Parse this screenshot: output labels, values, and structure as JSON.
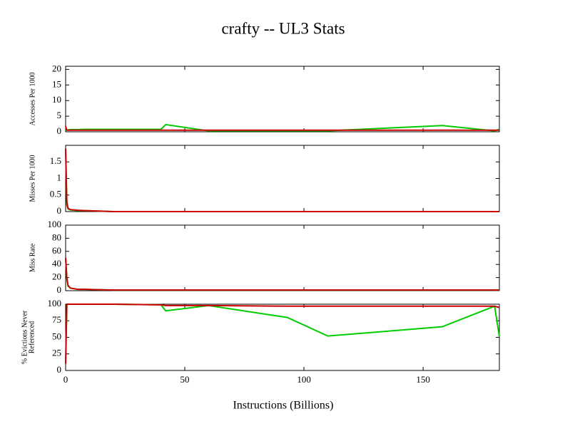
{
  "chart_data": [
    {
      "type": "line",
      "title": "crafty -- UL3  Stats",
      "ylabel": "Accesses Per 1000",
      "x": [
        0,
        0.5,
        1,
        2,
        5,
        8,
        20,
        40,
        42,
        60,
        93,
        110,
        158,
        180,
        182
      ],
      "xlim": [
        0,
        182
      ],
      "ylim": [
        0,
        21
      ],
      "yticks": [
        0,
        5,
        10,
        15,
        20
      ],
      "series": [
        {
          "color": "#00cc00",
          "values": [
            0.5,
            0.6,
            0.6,
            0.7,
            0.7,
            0.8,
            0.8,
            0.8,
            2.3,
            0.3,
            0.3,
            0.3,
            2.0,
            0.3,
            0.8
          ]
        },
        {
          "color": "#cc0000",
          "values": [
            1.8,
            0.5,
            0.5,
            0.5,
            0.5,
            0.5,
            0.5,
            0.5,
            0.5,
            0.5,
            0.5,
            0.5,
            0.5,
            0.5,
            0.5
          ]
        }
      ]
    },
    {
      "type": "line",
      "ylabel": "Misses Per 1000",
      "x": [
        0,
        0.5,
        1,
        2,
        5,
        8,
        20,
        40,
        42,
        60,
        93,
        110,
        158,
        180,
        182
      ],
      "xlim": [
        0,
        182
      ],
      "ylim": [
        0,
        2
      ],
      "yticks": [
        0,
        0.5,
        1,
        1.5
      ],
      "series": [
        {
          "color": "#00cc00",
          "values": [
            1.9,
            0.2,
            0.08,
            0.05,
            0.03,
            0.03,
            0,
            0,
            0,
            0,
            0,
            0,
            0,
            0,
            0
          ]
        },
        {
          "color": "#cc0000",
          "values": [
            1.9,
            0.3,
            0.1,
            0.06,
            0.04,
            0.03,
            0,
            0,
            0,
            0,
            0,
            0,
            0,
            0,
            0
          ]
        }
      ]
    },
    {
      "type": "line",
      "ylabel": "Miss Rate",
      "x": [
        0,
        0.5,
        1,
        2,
        5,
        8,
        20,
        40,
        42,
        60,
        93,
        110,
        158,
        180,
        182
      ],
      "xlim": [
        0,
        182
      ],
      "ylim": [
        0,
        100
      ],
      "yticks": [
        0,
        20,
        40,
        60,
        80,
        100
      ],
      "series": [
        {
          "color": "#00cc00",
          "values": [
            50,
            18,
            7,
            4,
            2,
            2,
            1,
            1,
            1,
            1,
            1,
            1,
            1,
            1,
            1
          ]
        },
        {
          "color": "#cc0000",
          "values": [
            50,
            20,
            8,
            4,
            2,
            2,
            1,
            1,
            1,
            1,
            1,
            1,
            1,
            1,
            1
          ]
        }
      ]
    },
    {
      "type": "line",
      "ylabel": [
        "% Evictions Never",
        "Referenced"
      ],
      "xlabel": "Instructions (Billions)",
      "x": [
        0,
        0.5,
        1,
        2,
        5,
        8,
        20,
        40,
        42,
        60,
        93,
        110,
        158,
        180,
        182
      ],
      "xlim": [
        0,
        182
      ],
      "xticks": [
        0,
        50,
        100,
        150
      ],
      "ylim": [
        0,
        100
      ],
      "yticks": [
        0,
        25,
        50,
        75,
        100
      ],
      "series": [
        {
          "color": "#00cc00",
          "values": [
            10,
            100,
            100,
            100,
            100,
            100,
            100,
            99,
            90,
            98,
            80,
            52,
            66,
            97,
            51
          ]
        },
        {
          "color": "#cc0000",
          "values": [
            10,
            100,
            100,
            100,
            100,
            100,
            100,
            99,
            98,
            98,
            97,
            97,
            97,
            97,
            95
          ]
        }
      ]
    }
  ]
}
